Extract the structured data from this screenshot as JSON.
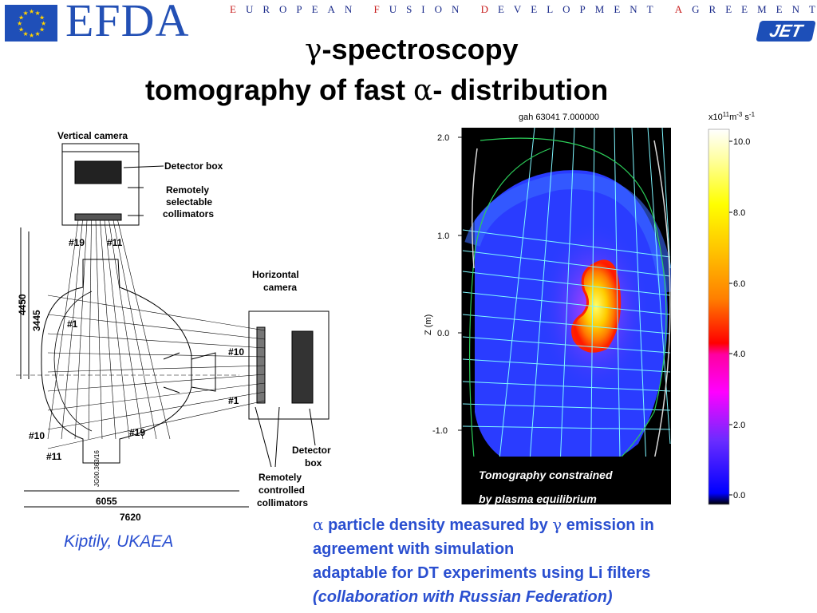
{
  "header": {
    "logo_text": "EFDA",
    "agreement_letters": [
      "E",
      "U",
      "R",
      "O",
      "P",
      "E",
      "A",
      "N",
      " ",
      "F",
      "U",
      "S",
      "I",
      "O",
      "N",
      " ",
      "D",
      "E",
      "V",
      "E",
      "L",
      "O",
      "P",
      "M",
      "E",
      "N",
      "T",
      " ",
      "A",
      "G",
      "R",
      "E",
      "E",
      "M",
      "E",
      "N",
      "T"
    ],
    "jet_logo_text": "JET",
    "flag_icon": "eu-flag-icon"
  },
  "title": {
    "line1_symbol": "γ",
    "line1_text": "-spectroscopy",
    "line2_prefix": "tomography of fast ",
    "line2_symbol": "α",
    "line2_suffix": "- distribution"
  },
  "diagram": {
    "labels": {
      "vertical_camera": "Vertical camera",
      "detector_box": "Detector box",
      "remotely_selectable_1": "Remotely",
      "remotely_selectable_2": "selectable",
      "remotely_selectable_3": "collimators",
      "horizontal_camera_1": "Horizontal",
      "horizontal_camera_2": "camera",
      "ch19_top": "#19",
      "ch11_top": "#11",
      "ch1_left": "#1",
      "ch10_right": "#10",
      "ch1_right": "#1",
      "ch10_low": "#10",
      "ch11_low": "#11",
      "ch19_low": "#19",
      "detector_box_right_1": "Detector",
      "detector_box_right_2": "box",
      "remotely_controlled_1": "Remotely",
      "remotely_controlled_2": "controlled",
      "remotely_controlled_3": "collimators",
      "dim_4450": "4450",
      "dim_3445": "3445",
      "dim_6055": "6055",
      "dim_7620": "7620",
      "drawing_ref": "JG00.363/16"
    }
  },
  "tomography": {
    "header_text": "gah  63041  7.000000",
    "unit_base": "x10",
    "unit_exp": "11",
    "unit_rest": "m",
    "unit_exp2": "-3",
    "unit_s": " s",
    "unit_exp3": "-1",
    "y_axis_label": "Z (m)",
    "y_ticks": [
      "2.0",
      "1.0",
      "0.0",
      "-1.0"
    ],
    "colorbar_ticks": [
      "10.0",
      "8.0",
      "6.0",
      "4.0",
      "2.0",
      "0.0"
    ],
    "note_line1": "Tomography constrained",
    "note_line2": "by plasma equilibrium"
  },
  "captions": {
    "credit": "Kiptily, UKAEA",
    "bullet1_symbol_a": "α",
    "bullet1_part1": " particle density measured by ",
    "bullet1_symbol_g": "γ",
    "bullet1_part2": " emission in",
    "bullet2": "agreement with simulation",
    "bullet3": "adaptable for DT experiments using Li filters",
    "bullet4": "(collaboration with Russian Federation)"
  }
}
